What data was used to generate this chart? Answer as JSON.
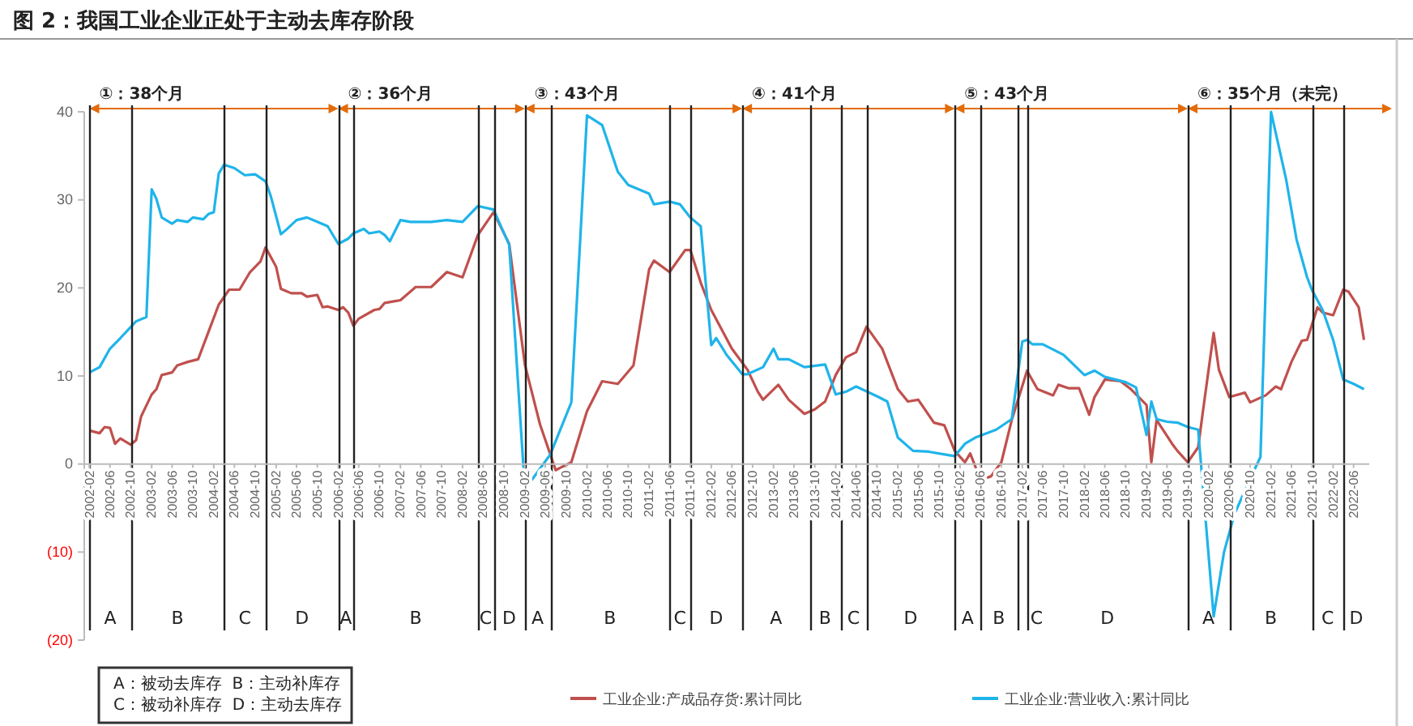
{
  "chart_data": {
    "type": "line",
    "title": "图 2：我国工业企业正处于主动去库存阶段",
    "xlim": [
      "2002-01",
      "2022-09"
    ],
    "ylim": [
      -20,
      40
    ],
    "yticks": [
      {
        "value": -20,
        "label": "(20)"
      },
      {
        "value": -10,
        "label": "(10)"
      },
      0,
      10,
      20,
      30,
      40
    ],
    "xticks": [
      "2002-02",
      "2002-06",
      "2002-10",
      "2003-02",
      "2003-06",
      "2003-10",
      "2004-02",
      "2004-06",
      "2004-10",
      "2005-02",
      "2005-06",
      "2005-10",
      "2006-02",
      "2006-06",
      "2006-10",
      "2007-02",
      "2007-06",
      "2007-10",
      "2008-02",
      "2008-06",
      "2008-10",
      "2009-02",
      "2009-06",
      "2009-10",
      "2010-02",
      "2010-06",
      "2010-10",
      "2011-02",
      "2011-06",
      "2011-10",
      "2012-02",
      "2012-06",
      "2012-10",
      "2013-02",
      "2013-06",
      "2013-10",
      "2014-02",
      "2014-06",
      "2014-10",
      "2015-02",
      "2015-06",
      "2015-10",
      "2016-02",
      "2016-06",
      "2016-10",
      "2017-02",
      "2017-06",
      "2017-10",
      "2018-02",
      "2018-06",
      "2018-10",
      "2019-02",
      "2019-06",
      "2019-10",
      "2020-02",
      "2020-06",
      "2020-10",
      "2021-02",
      "2021-06",
      "2021-10",
      "2022-02",
      "2022-06"
    ],
    "legend": "bottom",
    "grid": false,
    "line_style": "solid",
    "marker": "none",
    "series": [
      {
        "name": "工业企业:产成品存货:累计同比",
        "color": "#c0504d",
        "x": [
          "2002-02",
          "2002-04",
          "2002-05",
          "2002-06",
          "2002-07",
          "2002-08",
          "2002-10",
          "2002-11",
          "2002-12",
          "2003-02",
          "2003-03",
          "2003-04",
          "2003-06",
          "2003-07",
          "2003-09",
          "2003-11",
          "2004-03",
          "2004-05",
          "2004-07",
          "2004-09",
          "2004-11",
          "2004-12",
          "2005-02",
          "2005-03",
          "2005-05",
          "2005-07",
          "2005-08",
          "2005-10",
          "2005-11",
          "2005-12",
          "2006-02",
          "2006-03",
          "2006-04",
          "2006-05",
          "2006-06",
          "2006-09",
          "2006-10",
          "2006-11",
          "2007-01",
          "2007-02",
          "2007-05",
          "2007-08",
          "2007-11",
          "2008-02",
          "2008-05",
          "2008-08",
          "2008-11",
          "2009-02",
          "2009-05",
          "2009-08",
          "2009-11",
          "2010-02",
          "2010-05",
          "2010-08",
          "2010-11",
          "2011-02",
          "2011-03",
          "2011-06",
          "2011-09",
          "2011-10",
          "2011-12",
          "2012-02",
          "2012-06",
          "2012-09",
          "2012-11",
          "2012-12",
          "2013-03",
          "2013-05",
          "2013-08",
          "2013-10",
          "2013-12",
          "2014-02",
          "2014-04",
          "2014-06",
          "2014-08",
          "2014-11",
          "2015-02",
          "2015-04",
          "2015-06",
          "2015-09",
          "2015-11",
          "2016-01",
          "2016-03",
          "2016-04",
          "2016-06",
          "2016-08",
          "2016-10",
          "2016-12",
          "2017-03",
          "2017-05",
          "2017-08",
          "2017-09",
          "2017-11",
          "2018-01",
          "2018-03",
          "2018-04",
          "2018-06",
          "2018-09",
          "2018-11",
          "2019-02",
          "2019-03",
          "2019-04",
          "2019-07",
          "2019-08",
          "2019-10",
          "2019-12",
          "2020-01",
          "2020-03",
          "2020-04",
          "2020-06",
          "2020-09",
          "2020-10",
          "2021-01",
          "2021-03",
          "2021-04",
          "2021-06",
          "2021-08",
          "2021-09",
          "2021-11",
          "2021-12",
          "2022-02",
          "2022-04",
          "2022-05",
          "2022-07",
          "2022-08"
        ],
        "values": [
          3.8,
          3.5,
          4.2,
          4.1,
          2.3,
          2.9,
          2.2,
          2.7,
          5.4,
          7.9,
          8.5,
          10.1,
          10.4,
          11.2,
          11.6,
          11.9,
          18.1,
          19.8,
          19.8,
          21.8,
          23,
          24.6,
          22.4,
          19.9,
          19.4,
          19.4,
          19,
          19.2,
          17.8,
          17.9,
          17.5,
          17.8,
          17.2,
          15.7,
          16.5,
          17.5,
          17.6,
          18.3,
          18.5,
          18.6,
          20.1,
          20.1,
          21.8,
          21.2,
          26,
          28.6,
          25,
          11.3,
          4.5,
          -0.7,
          0.2,
          6,
          9.4,
          9.1,
          11.2,
          22.1,
          23.1,
          21.8,
          24.3,
          24.3,
          20.6,
          17.5,
          13.1,
          10.7,
          8.2,
          7.3,
          9,
          7.3,
          5.7,
          6.2,
          7.1,
          10.1,
          12.1,
          12.7,
          15.6,
          13.1,
          8.5,
          7.1,
          7.3,
          4.7,
          4.4,
          1.5,
          0.2,
          1.2,
          -1.8,
          -1.4,
          0.2,
          5,
          10.6,
          8.5,
          7.8,
          9,
          8.6,
          8.6,
          5.6,
          7.6,
          9.6,
          9.4,
          8.5,
          6.7,
          0.2,
          5,
          2.3,
          1.5,
          0.2,
          1.9,
          6.4,
          14.9,
          10.7,
          7.6,
          8.1,
          7,
          7.8,
          8.8,
          8.5,
          11.6,
          14,
          14.1,
          17.8,
          17.2,
          16.9,
          19.8,
          19.6,
          17.8,
          14.1
        ]
      },
      {
        "name": "工业企业:营业收入:累计同比",
        "color": "#1fb4ea",
        "x": [
          "2002-02",
          "2002-04",
          "2002-06",
          "2002-08",
          "2002-11",
          "2003-01",
          "2003-02",
          "2003-03",
          "2003-04",
          "2003-06",
          "2003-07",
          "2003-09",
          "2003-10",
          "2003-12",
          "2004-01",
          "2004-02",
          "2004-03",
          "2004-04",
          "2004-06",
          "2004-08",
          "2004-10",
          "2004-12",
          "2005-01",
          "2005-03",
          "2005-04",
          "2005-06",
          "2005-08",
          "2005-10",
          "2005-12",
          "2006-02",
          "2006-04",
          "2006-05",
          "2006-07",
          "2006-08",
          "2006-10",
          "2006-11",
          "2006-12",
          "2007-02",
          "2007-04",
          "2007-08",
          "2007-11",
          "2008-02",
          "2008-05",
          "2008-08",
          "2008-11",
          "2009-02",
          "2009-07",
          "2009-11",
          "2010-02",
          "2010-05",
          "2010-08",
          "2010-10",
          "2011-02",
          "2011-03",
          "2011-06",
          "2011-08",
          "2011-10",
          "2011-12",
          "2012-02",
          "2012-03",
          "2012-05",
          "2012-08",
          "2012-09",
          "2012-12",
          "2013-02",
          "2013-03",
          "2013-05",
          "2013-08",
          "2013-12",
          "2014-02",
          "2014-04",
          "2014-06",
          "2014-10",
          "2014-12",
          "2015-02",
          "2015-05",
          "2015-08",
          "2015-12",
          "2016-01",
          "2016-03",
          "2016-05",
          "2016-09",
          "2016-12",
          "2017-02",
          "2017-03",
          "2017-04",
          "2017-06",
          "2017-10",
          "2018-02",
          "2018-04",
          "2018-06",
          "2018-10",
          "2018-12",
          "2019-02",
          "2019-03",
          "2019-04",
          "2019-06",
          "2019-08",
          "2019-10",
          "2019-12",
          "2020-03",
          "2020-05",
          "2020-07",
          "2020-10",
          "2020-12",
          "2021-02",
          "2021-05",
          "2021-07",
          "2021-09",
          "2021-10",
          "2021-12",
          "2022-02",
          "2022-04",
          "2022-06",
          "2022-08"
        ],
        "values": [
          10.4,
          11,
          13.1,
          14.3,
          16.2,
          16.7,
          31.2,
          30.1,
          28,
          27.3,
          27.7,
          27.5,
          28,
          27.8,
          28.4,
          28.6,
          33,
          34,
          33.6,
          32.8,
          32.9,
          32.1,
          30.4,
          26.1,
          26.6,
          27.7,
          28,
          27.5,
          27,
          25,
          25.6,
          26.2,
          26.7,
          26.2,
          26.4,
          26,
          25.3,
          27.7,
          27.5,
          27.5,
          27.7,
          27.5,
          29.3,
          28.9,
          24.9,
          -2.9,
          1.1,
          7,
          39.6,
          38.5,
          33.2,
          31.7,
          30.7,
          29.5,
          29.8,
          29.5,
          28,
          27,
          13.5,
          14.3,
          12.4,
          10.2,
          10.2,
          11,
          13.1,
          11.9,
          11.9,
          11,
          11.3,
          7.9,
          8.2,
          8.8,
          7.7,
          7.1,
          3,
          1.5,
          1.4,
          1,
          0.9,
          2.3,
          3,
          3.9,
          5.1,
          13.9,
          14.1,
          13.6,
          13.6,
          12.4,
          10.1,
          10.6,
          9.9,
          9.3,
          8.7,
          3.3,
          7.1,
          5.1,
          4.8,
          4.7,
          4.2,
          3.9,
          -17.3,
          -10,
          -5.7,
          -1.7,
          0.8,
          40,
          32.3,
          25.5,
          21.2,
          19.7,
          17.5,
          14.1,
          9.6,
          9.1,
          8.5
        ]
      }
    ],
    "ref_lines": [
      {
        "axis": "x",
        "value": "2002-02",
        "color": "#222222",
        "label": "①：38个月"
      },
      {
        "axis": "x",
        "value": "2002-10",
        "color": "#222222"
      },
      {
        "axis": "x",
        "value": "2004-04",
        "color": "#222222"
      },
      {
        "axis": "x",
        "value": "2004-12",
        "color": "#222222"
      },
      {
        "axis": "x",
        "value": "2006-02",
        "color": "#222222",
        "label": "②：36个月"
      },
      {
        "axis": "x",
        "value": "2006-05",
        "color": "#222222"
      },
      {
        "axis": "x",
        "value": "2008-05",
        "color": "#222222"
      },
      {
        "axis": "x",
        "value": "2008-08",
        "color": "#222222"
      },
      {
        "axis": "x",
        "value": "2009-02",
        "color": "#222222",
        "label": "③：43个月"
      },
      {
        "axis": "x",
        "value": "2009-07",
        "color": "#222222"
      },
      {
        "axis": "x",
        "value": "2011-06",
        "color": "#222222"
      },
      {
        "axis": "x",
        "value": "2011-10",
        "color": "#222222"
      },
      {
        "axis": "x",
        "value": "2012-08",
        "color": "#222222",
        "label": "④：41个月"
      },
      {
        "axis": "x",
        "value": "2013-09",
        "color": "#222222"
      },
      {
        "axis": "x",
        "value": "2014-03",
        "color": "#222222"
      },
      {
        "axis": "x",
        "value": "2014-08",
        "color": "#222222"
      },
      {
        "axis": "x",
        "value": "2016-01",
        "color": "#222222",
        "label": "⑤：43个月"
      },
      {
        "axis": "x",
        "value": "2016-06",
        "color": "#222222"
      },
      {
        "axis": "x",
        "value": "2017-01",
        "color": "#222222"
      },
      {
        "axis": "x",
        "value": "2017-03",
        "color": "#222222"
      },
      {
        "axis": "x",
        "value": "2019-10",
        "color": "#222222",
        "label": "⑥：35个月（未完）"
      },
      {
        "axis": "x",
        "value": "2020-06",
        "color": "#222222"
      },
      {
        "axis": "x",
        "value": "2021-10",
        "color": "#222222"
      },
      {
        "axis": "x",
        "value": "2022-04",
        "color": "#222222"
      }
    ],
    "annotations": [
      "A",
      "B",
      "C",
      "D",
      "A",
      "B",
      "C",
      "D",
      "A",
      "B",
      "C",
      "D",
      "A",
      "B",
      "C",
      "D",
      "A",
      "B",
      "C",
      "D",
      "A",
      "B",
      "C",
      "D",
      "A：被动去库存  B：主动补库存",
      "C：被动补库存  D：主动去库存"
    ]
  }
}
